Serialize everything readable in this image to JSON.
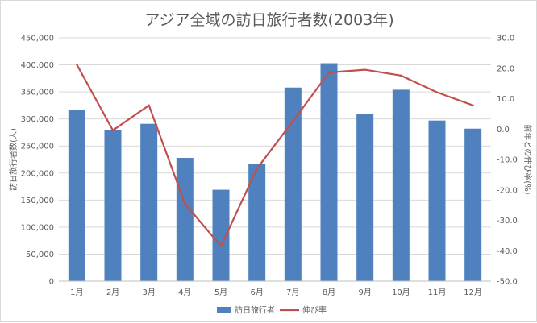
{
  "chart_data": {
    "type": "bar",
    "title": "アジア全域の訪日旅行者数(2003年)",
    "categories": [
      "1月",
      "2月",
      "3月",
      "4月",
      "5月",
      "6月",
      "7月",
      "8月",
      "9月",
      "10月",
      "11月",
      "12月"
    ],
    "series": [
      {
        "name": "訪日旅行者",
        "type": "bar",
        "axis": "left",
        "color": "#4e81bd",
        "values": [
          316000,
          280000,
          291000,
          228000,
          169000,
          217000,
          358000,
          403000,
          309000,
          354000,
          297000,
          282000
        ]
      },
      {
        "name": "伸び率",
        "type": "line",
        "axis": "right",
        "color": "#c0504d",
        "values": [
          21.2,
          -0.4,
          7.8,
          -24.5,
          -38.5,
          -13.0,
          2.6,
          18.6,
          19.5,
          17.6,
          12.1,
          7.8
        ]
      }
    ],
    "ylabel": "訪日旅行者数(人)",
    "ylim": [
      0,
      450000
    ],
    "yticks": [
      "0",
      "50,000",
      "100,000",
      "150,000",
      "200,000",
      "250,000",
      "300,000",
      "350,000",
      "400,000",
      "450,000"
    ],
    "y2label": "前年との伸び率(%)",
    "y2lim": [
      -50,
      30
    ],
    "y2ticks": [
      "-50.0",
      "-40.0",
      "-30.0",
      "-20.0",
      "-10.0",
      "0.0",
      "10.0",
      "20.0",
      "30.0"
    ],
    "grid": true,
    "legend_position": "bottom"
  }
}
